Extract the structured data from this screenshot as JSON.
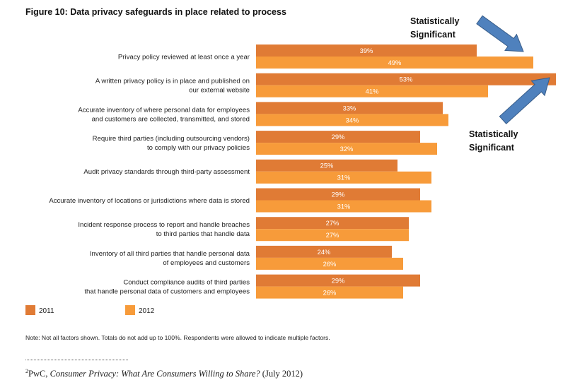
{
  "title": "Figure 10: Data privacy safeguards in place related to process",
  "chart_data": {
    "type": "bar",
    "orientation": "horizontal",
    "categories": [
      [
        "Privacy policy reviewed at least once a year"
      ],
      [
        "A written privacy policy is in place and published on",
        "our external website"
      ],
      [
        "Accurate inventory of where personal data for employees",
        "and customers are collected, transmitted, and stored"
      ],
      [
        "Require third parties (including outsourcing vendors)",
        "to comply with our privacy policies"
      ],
      [
        "Audit privacy standards through third-party assessment"
      ],
      [
        "Accurate inventory of locations or jurisdictions where data is stored"
      ],
      [
        "Incident response process to report and handle breaches",
        "to third parties that handle data"
      ],
      [
        "Inventory of all third parties that handle personal data",
        "of employees and customers"
      ],
      [
        "Conduct compliance audits of third parties",
        "that handle personal data of customers and employees"
      ]
    ],
    "series": [
      {
        "name": "2011",
        "color": "#E07B35",
        "values": [
          39,
          53,
          33,
          29,
          25,
          29,
          27,
          24,
          29
        ],
        "labels": [
          "39%",
          "53%",
          "33%",
          "29%",
          "25%",
          "29%",
          "27%",
          "24%",
          "29%"
        ]
      },
      {
        "name": "2012",
        "color": "#F79B3A",
        "values": [
          49,
          41,
          34,
          32,
          31,
          31,
          27,
          26,
          26
        ],
        "labels": [
          "49%",
          "41%",
          "34%",
          "32%",
          "31%",
          "31%",
          "27%",
          "26%",
          "26%"
        ]
      }
    ],
    "xlim": [
      0,
      53
    ],
    "legend": [
      "2011",
      "2012"
    ],
    "legend_position": "bottom-left",
    "annotations": [
      {
        "text": [
          "Statistically",
          "Significant"
        ],
        "points_to": "Privacy policy reviewed at least once a year (2012)"
      },
      {
        "text": [
          "Statistically",
          "Significant"
        ],
        "points_to": "A written privacy policy is in place and published on our external website (2011)"
      }
    ]
  },
  "callouts": [
    {
      "line1": "Statistically",
      "line2": "Significant"
    },
    {
      "line1": "Statistically",
      "line2": "Significant"
    }
  ],
  "colors": {
    "arrow": "#4F81BD",
    "arrow_stroke": "#385D8A"
  },
  "note": "Note: Not all factors shown. Totals do not add up to 100%. Respondents were allowed to indicate multiple factors.",
  "footnote": {
    "marker": "2",
    "prefix": "PwC, ",
    "italic": "Consumer Privacy: What Are Consumers Willing to Share?",
    "suffix": " (July 2012)"
  }
}
